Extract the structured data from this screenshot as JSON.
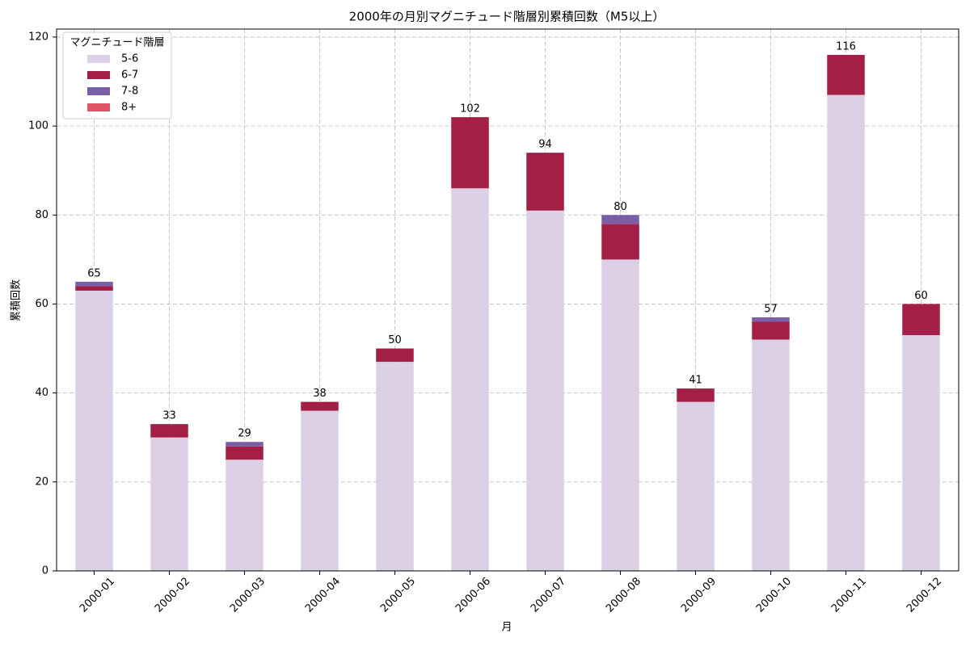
{
  "chart_data": {
    "type": "stacked_bar",
    "title": "2000年の月別マグニチュード階層別累積回数（M5以上）",
    "x_label": "月",
    "y_label": "累積回数",
    "legend_title": "マグニチュード階層",
    "legend_position": "upper left",
    "grid": true,
    "categories": [
      "2000-01",
      "2000-02",
      "2000-03",
      "2000-04",
      "2000-05",
      "2000-06",
      "2000-07",
      "2000-08",
      "2000-09",
      "2000-10",
      "2000-11",
      "2000-12"
    ],
    "series": [
      {
        "name": "5-6",
        "color": "#dcd0e6",
        "values": [
          63,
          30,
          25,
          36,
          47,
          86,
          81,
          70,
          38,
          52,
          107,
          53
        ]
      },
      {
        "name": "6-7",
        "color": "#a31f45",
        "values": [
          1,
          3,
          3,
          2,
          3,
          16,
          13,
          8,
          3,
          4,
          9,
          7
        ]
      },
      {
        "name": "7-8",
        "color": "#7a5fa6",
        "values": [
          1,
          0,
          1,
          0,
          0,
          0,
          0,
          2,
          0,
          1,
          0,
          0
        ]
      },
      {
        "name": "8+",
        "color": "#e05565",
        "values": [
          0,
          0,
          0,
          0,
          0,
          0,
          0,
          0,
          0,
          0,
          0,
          0
        ]
      }
    ],
    "totals": [
      65,
      33,
      29,
      38,
      50,
      102,
      94,
      80,
      41,
      57,
      116,
      60
    ],
    "ylim": [
      0,
      121.8
    ],
    "yticks": [
      0,
      20,
      40,
      60,
      80,
      100,
      120
    ]
  }
}
